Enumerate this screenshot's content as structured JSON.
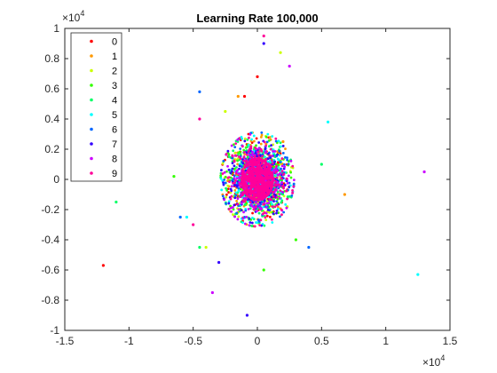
{
  "chart_data": {
    "type": "scatter",
    "title": "Learning Rate 100,000",
    "xlabel": "",
    "ylabel": "",
    "xlim": [
      -1.5,
      1.5
    ],
    "ylim": [
      -1,
      1
    ],
    "x_exponent_label": "×10",
    "x_exponent_power": "4",
    "y_exponent_label": "×10",
    "y_exponent_power": "4",
    "xticks": [
      -1.5,
      -1,
      -0.5,
      0,
      0.5,
      1,
      1.5
    ],
    "xtick_labels": [
      "-1.5",
      "-1",
      "-0.5",
      "0",
      "0.5",
      "1",
      "1.5"
    ],
    "yticks": [
      -1,
      -0.8,
      -0.6,
      -0.4,
      -0.2,
      0,
      0.2,
      0.4,
      0.6,
      0.8,
      1
    ],
    "ytick_labels": [
      "-1",
      "-0.8",
      "-0.6",
      "-0.4",
      "-0.2",
      "0",
      "0.2",
      "0.4",
      "0.6",
      "0.8",
      "1"
    ],
    "grid": false,
    "legend_position": "top-left",
    "series": [
      {
        "name": "0",
        "color": "#ff0000",
        "outliers": [
          [
            -1.2,
            -0.57
          ],
          [
            0.0,
            0.68
          ],
          [
            -0.1,
            0.55
          ]
        ]
      },
      {
        "name": "1",
        "color": "#ff9900",
        "outliers": [
          [
            0.68,
            -0.1
          ],
          [
            -0.15,
            0.55
          ],
          [
            0.2,
            0.25
          ]
        ]
      },
      {
        "name": "2",
        "color": "#ccff00",
        "outliers": [
          [
            0.18,
            0.84
          ],
          [
            -0.4,
            -0.45
          ],
          [
            -0.25,
            0.45
          ]
        ]
      },
      {
        "name": "3",
        "color": "#33ff00",
        "outliers": [
          [
            -0.65,
            0.02
          ],
          [
            0.3,
            -0.4
          ],
          [
            0.05,
            -0.6
          ]
        ]
      },
      {
        "name": "4",
        "color": "#00ff66",
        "outliers": [
          [
            -1.1,
            -0.15
          ],
          [
            -0.45,
            -0.45
          ],
          [
            0.5,
            0.1
          ]
        ]
      },
      {
        "name": "5",
        "color": "#00ffff",
        "outliers": [
          [
            1.25,
            -0.63
          ],
          [
            0.55,
            0.38
          ],
          [
            -0.55,
            -0.25
          ]
        ]
      },
      {
        "name": "6",
        "color": "#0066ff",
        "outliers": [
          [
            -0.45,
            0.58
          ],
          [
            -0.6,
            -0.25
          ],
          [
            0.4,
            -0.45
          ]
        ]
      },
      {
        "name": "7",
        "color": "#3300ff",
        "outliers": [
          [
            -0.08,
            -0.9
          ],
          [
            0.05,
            0.9
          ],
          [
            -0.3,
            -0.55
          ]
        ]
      },
      {
        "name": "8",
        "color": "#cc00ff",
        "outliers": [
          [
            1.3,
            0.05
          ],
          [
            -0.35,
            -0.75
          ],
          [
            0.25,
            0.75
          ]
        ]
      },
      {
        "name": "9",
        "color": "#ff0099",
        "outliers": [
          [
            0.05,
            0.95
          ],
          [
            -0.5,
            -0.3
          ],
          [
            -0.45,
            0.4
          ]
        ]
      }
    ],
    "cluster": {
      "center": [
        0,
        0
      ],
      "std_x": 0.11,
      "std_y": 0.12,
      "points_per_series": 220
    }
  }
}
